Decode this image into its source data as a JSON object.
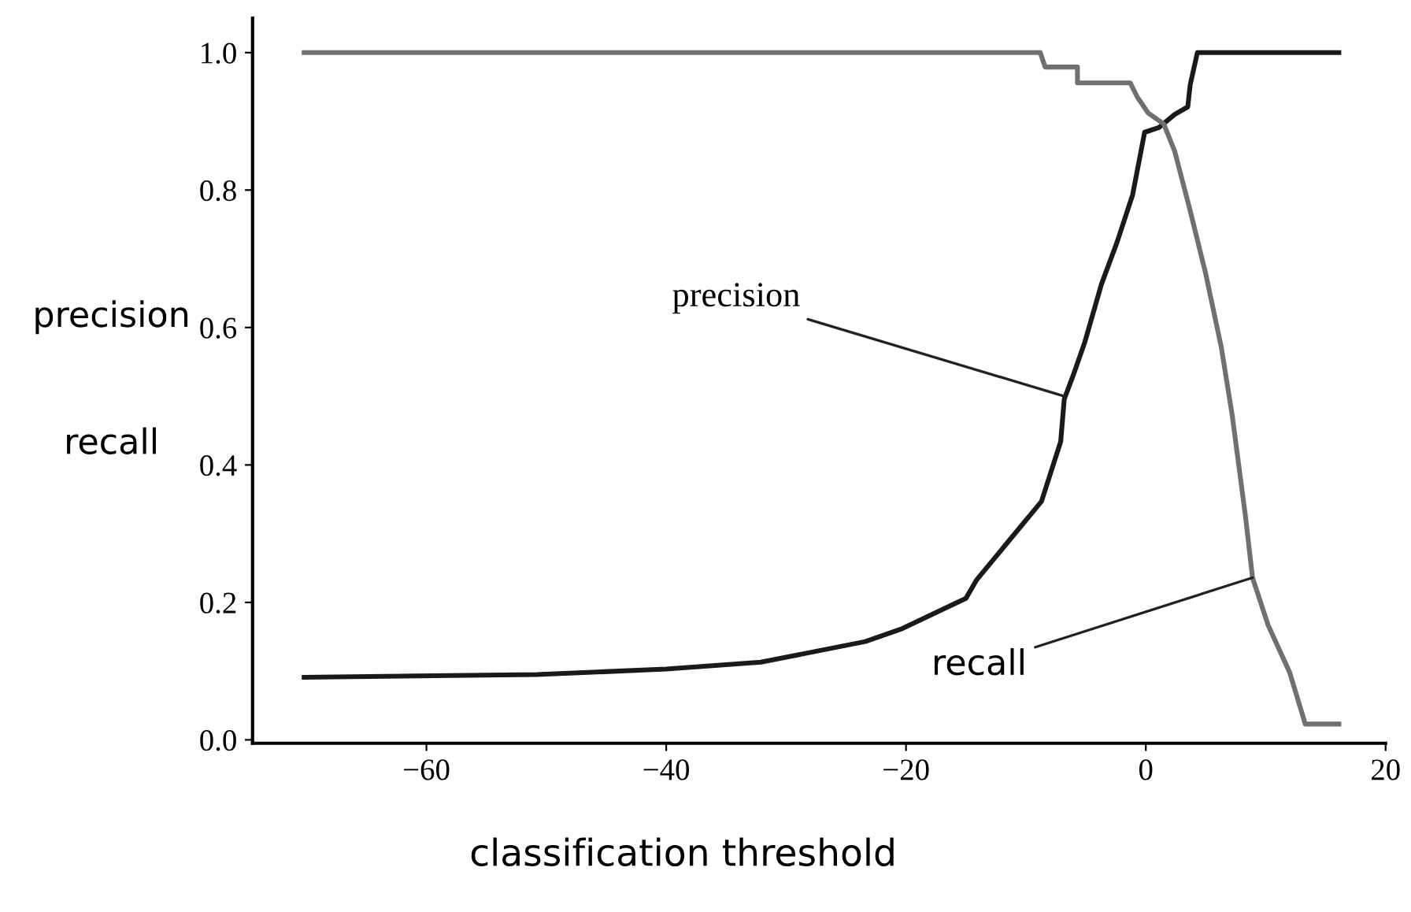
{
  "chart_data": {
    "type": "line",
    "xlabel": "classification threshold",
    "ylabel": "precision\nrecall",
    "xlim": [
      -74.5,
      20
    ],
    "ylim": [
      -0.005,
      1.05
    ],
    "xticks": [
      {
        "value": -60,
        "label": "−60"
      },
      {
        "value": -40,
        "label": "−40"
      },
      {
        "value": -20,
        "label": "−20"
      },
      0,
      20
    ],
    "yticks": [
      {
        "value": 0,
        "label": "0.0"
      },
      0.2,
      0.4,
      0.6,
      0.8,
      {
        "value": 1,
        "label": "1.0"
      }
    ],
    "grid": false,
    "marker": "none",
    "line_style": "solid",
    "annotations": [
      {
        "text": "precision",
        "x": -6.8,
        "y": 0.5
      },
      {
        "text": "recall",
        "x": 8.9,
        "y": 0.236
      }
    ],
    "series": [
      {
        "color": "#1a1a1a",
        "x": [
          -70.2,
          -50.8,
          -40,
          -32.1,
          -23.4,
          -20.3,
          -15,
          -14.1,
          -8.7,
          -7.1,
          -6.8,
          -6.0,
          -5.1,
          -3.7,
          -2.4,
          -1.1,
          -0.1,
          1.1,
          2.4,
          3.5,
          3.7,
          4.3,
          16.1
        ],
        "values": [
          0.091,
          0.095,
          0.103,
          0.113,
          0.143,
          0.162,
          0.206,
          0.233,
          0.347,
          0.434,
          0.496,
          0.533,
          0.578,
          0.663,
          0.724,
          0.793,
          0.884,
          0.891,
          0.91,
          0.921,
          0.953,
          1.0,
          1.0
        ]
      },
      {
        "color": "#707070",
        "x": [
          -70.2,
          -8.8,
          -8.4,
          -5.7,
          -5.7,
          -1.3,
          -0.7,
          0.2,
          1.5,
          2.4,
          3.7,
          5.0,
          6.3,
          7.2,
          8.3,
          8.9,
          10.2,
          12.0,
          13.3,
          16.1
        ],
        "values": [
          1.0,
          1.0,
          0.979,
          0.979,
          0.956,
          0.956,
          0.935,
          0.912,
          0.896,
          0.857,
          0.77,
          0.678,
          0.571,
          0.473,
          0.327,
          0.236,
          0.167,
          0.098,
          0.023,
          0.023
        ]
      }
    ]
  }
}
